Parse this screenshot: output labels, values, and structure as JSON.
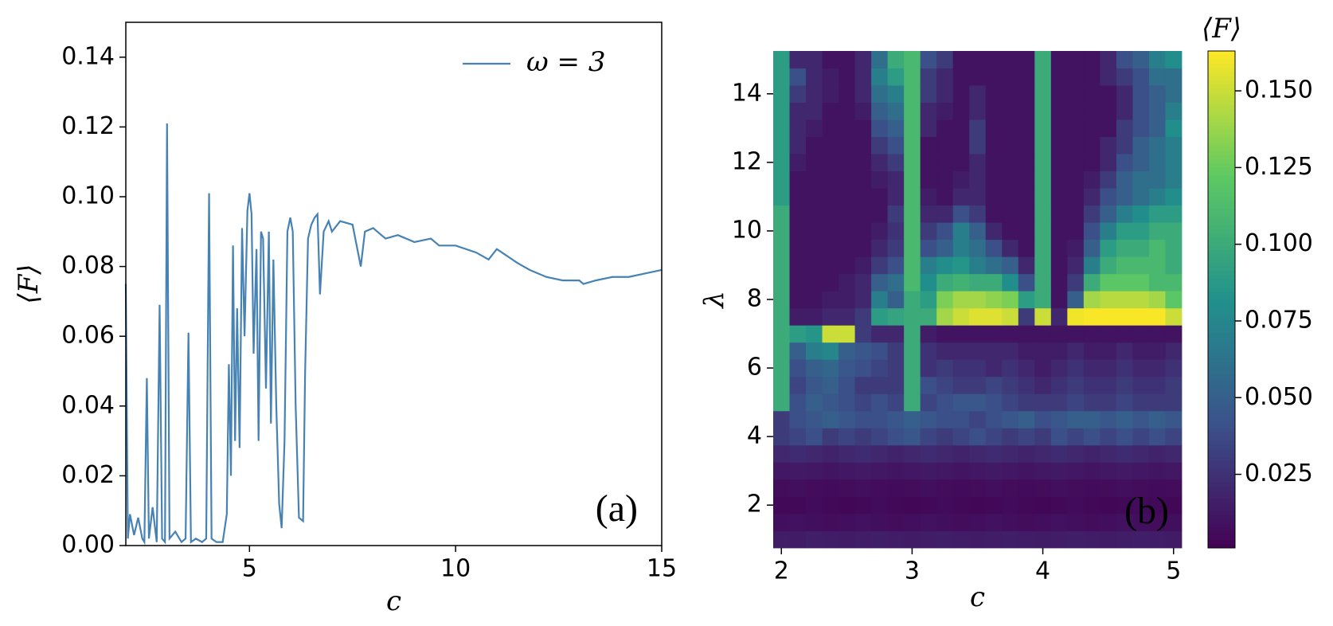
{
  "chart_data": [
    {
      "type": "line",
      "xlabel": "c",
      "ylabel": "⟨F⟩",
      "annotation": "(a)",
      "xlim": [
        2,
        15
      ],
      "ylim": [
        0,
        0.15
      ],
      "xticks": [
        5,
        10,
        15
      ],
      "yticks": [
        {
          "value": 0,
          "label": "0.00"
        },
        {
          "value": 0.02,
          "label": "0.02"
        },
        {
          "value": 0.04,
          "label": "0.04"
        },
        {
          "value": 0.06,
          "label": "0.06"
        },
        {
          "value": 0.08,
          "label": "0.08"
        },
        {
          "value": 0.1,
          "label": "0.10"
        },
        {
          "value": 0.12,
          "label": "0.12"
        },
        {
          "value": 0.14,
          "label": "0.14"
        }
      ],
      "legend": "upper right",
      "x": [
        2.0,
        2.05,
        2.1,
        2.2,
        2.3,
        2.4,
        2.45,
        2.51,
        2.56,
        2.65,
        2.75,
        2.82,
        2.88,
        2.95,
        3.0,
        3.06,
        3.2,
        3.35,
        3.45,
        3.52,
        3.58,
        3.7,
        3.85,
        3.95,
        4.02,
        4.08,
        4.2,
        4.35,
        4.45,
        4.5,
        4.55,
        4.6,
        4.65,
        4.7,
        4.76,
        4.82,
        4.88,
        4.95,
        5.0,
        5.05,
        5.1,
        5.17,
        5.22,
        5.28,
        5.33,
        5.4,
        5.47,
        5.52,
        5.58,
        5.65,
        5.72,
        5.78,
        5.85,
        5.92,
        5.99,
        6.05,
        6.12,
        6.2,
        6.3,
        6.35,
        6.42,
        6.5,
        6.58,
        6.65,
        6.71,
        6.8,
        6.92,
        7.0,
        7.2,
        7.5,
        7.7,
        7.8,
        8.0,
        8.3,
        8.6,
        9.0,
        9.4,
        9.6,
        10.0,
        10.5,
        10.8,
        11.0,
        11.5,
        11.8,
        12.2,
        12.6,
        13.0,
        13.1,
        13.4,
        13.8,
        14.2,
        14.6,
        15.0
      ],
      "series": [
        {
          "name": "ω = 3",
          "color": "#4682b4",
          "values": [
            0.075,
            0.002,
            0.009,
            0.003,
            0.008,
            0.002,
            0.001,
            0.048,
            0.002,
            0.011,
            0.001,
            0.069,
            0.002,
            0.001,
            0.121,
            0.002,
            0.004,
            0.001,
            0.002,
            0.061,
            0.001,
            0.002,
            0.001,
            0.002,
            0.101,
            0.002,
            0.001,
            0.001,
            0.009,
            0.052,
            0.02,
            0.086,
            0.03,
            0.068,
            0.028,
            0.091,
            0.06,
            0.096,
            0.101,
            0.095,
            0.055,
            0.085,
            0.03,
            0.09,
            0.088,
            0.045,
            0.09,
            0.035,
            0.082,
            0.04,
            0.012,
            0.005,
            0.03,
            0.09,
            0.094,
            0.09,
            0.04,
            0.008,
            0.007,
            0.05,
            0.088,
            0.092,
            0.094,
            0.095,
            0.072,
            0.09,
            0.093,
            0.09,
            0.093,
            0.092,
            0.08,
            0.09,
            0.091,
            0.088,
            0.089,
            0.087,
            0.088,
            0.086,
            0.086,
            0.084,
            0.082,
            0.085,
            0.081,
            0.079,
            0.077,
            0.076,
            0.076,
            0.075,
            0.076,
            0.077,
            0.077,
            0.078,
            0.079
          ]
        }
      ]
    },
    {
      "type": "heatmap",
      "xlabel": "c",
      "ylabel": "λ",
      "annotation": "(b)",
      "colormap": "viridis",
      "xlim": [
        1.9375,
        5.0625
      ],
      "ylim": [
        0.75,
        15.25
      ],
      "xticks": [
        2,
        3,
        4,
        5
      ],
      "yticks": [
        2,
        4,
        6,
        8,
        10,
        12,
        14
      ],
      "colorbar": {
        "label": "⟨F⟩",
        "lim": [
          0.001,
          0.163
        ],
        "ticks": [
          0.025,
          {
            "value": 0.05,
            "label": "0.050"
          },
          0.075,
          {
            "value": 0.1,
            "label": "0.100"
          },
          0.125,
          {
            "value": 0.15,
            "label": "0.150"
          }
        ]
      },
      "x": [
        2.0,
        2.125,
        2.25,
        2.375,
        2.5,
        2.625,
        2.75,
        2.875,
        3.0,
        3.125,
        3.25,
        3.375,
        3.5,
        3.625,
        3.75,
        3.875,
        4.0,
        4.125,
        4.25,
        4.375,
        4.5,
        4.625,
        4.75,
        4.875,
        5.0
      ],
      "y": [
        1.0,
        1.5,
        2.0,
        2.5,
        3.0,
        3.5,
        4.0,
        4.5,
        5.0,
        5.5,
        6.0,
        6.5,
        7.0,
        7.5,
        8.0,
        8.5,
        9.0,
        9.5,
        10.0,
        10.5,
        11.0,
        11.5,
        12.0,
        12.5,
        13.0,
        13.5,
        14.0,
        14.5,
        15.0
      ],
      "z": [
        [
          0.015,
          0.014,
          0.016,
          0.015,
          0.014,
          0.015,
          0.016,
          0.015,
          0.014,
          0.015,
          0.016,
          0.015,
          0.014,
          0.015,
          0.016,
          0.015,
          0.014,
          0.015,
          0.016,
          0.015,
          0.014,
          0.015,
          0.016,
          0.015,
          0.014
        ],
        [
          0.008,
          0.009,
          0.008,
          0.007,
          0.008,
          0.009,
          0.008,
          0.007,
          0.008,
          0.009,
          0.008,
          0.007,
          0.008,
          0.009,
          0.008,
          0.007,
          0.008,
          0.009,
          0.008,
          0.007,
          0.008,
          0.009,
          0.008,
          0.007,
          0.008
        ],
        [
          0.005,
          0.005,
          0.006,
          0.005,
          0.004,
          0.005,
          0.006,
          0.005,
          0.004,
          0.005,
          0.006,
          0.005,
          0.004,
          0.005,
          0.006,
          0.005,
          0.004,
          0.005,
          0.006,
          0.005,
          0.004,
          0.005,
          0.006,
          0.005,
          0.004
        ],
        [
          0.007,
          0.008,
          0.007,
          0.006,
          0.007,
          0.008,
          0.007,
          0.006,
          0.007,
          0.008,
          0.007,
          0.006,
          0.007,
          0.008,
          0.007,
          0.006,
          0.007,
          0.008,
          0.007,
          0.006,
          0.007,
          0.008,
          0.007,
          0.006,
          0.007
        ],
        [
          0.012,
          0.013,
          0.012,
          0.011,
          0.012,
          0.013,
          0.012,
          0.011,
          0.012,
          0.013,
          0.012,
          0.011,
          0.012,
          0.013,
          0.012,
          0.011,
          0.012,
          0.013,
          0.012,
          0.011,
          0.012,
          0.013,
          0.012,
          0.011,
          0.012
        ],
        [
          0.02,
          0.022,
          0.02,
          0.018,
          0.02,
          0.022,
          0.02,
          0.018,
          0.02,
          0.022,
          0.02,
          0.018,
          0.02,
          0.022,
          0.02,
          0.018,
          0.02,
          0.022,
          0.02,
          0.018,
          0.02,
          0.022,
          0.02,
          0.018,
          0.02
        ],
        [
          0.03,
          0.035,
          0.04,
          0.03,
          0.035,
          0.03,
          0.035,
          0.04,
          0.045,
          0.035,
          0.03,
          0.035,
          0.04,
          0.035,
          0.03,
          0.035,
          0.03,
          0.04,
          0.035,
          0.04,
          0.035,
          0.04,
          0.035,
          0.04,
          0.035
        ],
        [
          0.03,
          0.04,
          0.045,
          0.05,
          0.045,
          0.04,
          0.04,
          0.045,
          0.05,
          0.045,
          0.04,
          0.04,
          0.035,
          0.04,
          0.045,
          0.05,
          0.04,
          0.045,
          0.05,
          0.05,
          0.045,
          0.05,
          0.045,
          0.05,
          0.045
        ],
        [
          0.1,
          0.04,
          0.05,
          0.045,
          0.04,
          0.035,
          0.04,
          0.035,
          0.1,
          0.035,
          0.04,
          0.045,
          0.045,
          0.04,
          0.035,
          0.03,
          0.03,
          0.03,
          0.035,
          0.03,
          0.03,
          0.035,
          0.03,
          0.03,
          0.03
        ],
        [
          0.1,
          0.035,
          0.045,
          0.05,
          0.04,
          0.03,
          0.03,
          0.03,
          0.1,
          0.04,
          0.035,
          0.03,
          0.03,
          0.035,
          0.03,
          0.025,
          0.02,
          0.025,
          0.03,
          0.025,
          0.025,
          0.03,
          0.025,
          0.025,
          0.03
        ],
        [
          0.1,
          0.04,
          0.05,
          0.055,
          0.045,
          0.04,
          0.035,
          0.03,
          0.1,
          0.025,
          0.03,
          0.025,
          0.025,
          0.02,
          0.025,
          0.02,
          0.015,
          0.02,
          0.025,
          0.02,
          0.02,
          0.025,
          0.02,
          0.02,
          0.025
        ],
        [
          0.1,
          0.05,
          0.07,
          0.075,
          0.05,
          0.045,
          0.04,
          0.03,
          0.1,
          0.025,
          0.02,
          0.02,
          0.02,
          0.02,
          0.02,
          0.015,
          0.015,
          0.015,
          0.02,
          0.015,
          0.015,
          0.02,
          0.015,
          0.015,
          0.02
        ],
        [
          0.1,
          0.09,
          0.085,
          0.15,
          0.15,
          0.03,
          0.02,
          0.02,
          0.1,
          0.015,
          0.01,
          0.01,
          0.01,
          0.01,
          0.01,
          0.01,
          0.01,
          0.01,
          0.01,
          0.01,
          0.01,
          0.01,
          0.01,
          0.01,
          0.01
        ],
        [
          0.1,
          0.015,
          0.015,
          0.02,
          0.02,
          0.03,
          0.09,
          0.095,
          0.1,
          0.1,
          0.14,
          0.15,
          0.155,
          0.155,
          0.15,
          0.03,
          0.15,
          0.02,
          0.16,
          0.162,
          0.162,
          0.162,
          0.162,
          0.162,
          0.15
        ],
        [
          0.1,
          0.01,
          0.01,
          0.015,
          0.015,
          0.02,
          0.07,
          0.05,
          0.1,
          0.09,
          0.13,
          0.14,
          0.14,
          0.135,
          0.13,
          0.09,
          0.1,
          0.01,
          0.05,
          0.14,
          0.145,
          0.145,
          0.145,
          0.14,
          0.12
        ],
        [
          0.1,
          0.01,
          0.01,
          0.01,
          0.015,
          0.02,
          0.05,
          0.06,
          0.11,
          0.08,
          0.1,
          0.105,
          0.1,
          0.1,
          0.08,
          0.04,
          0.1,
          0.01,
          0.03,
          0.1,
          0.12,
          0.12,
          0.12,
          0.11,
          0.11
        ],
        [
          0.1,
          0.01,
          0.01,
          0.01,
          0.01,
          0.015,
          0.03,
          0.04,
          0.11,
          0.07,
          0.08,
          0.085,
          0.07,
          0.06,
          0.05,
          0.02,
          0.1,
          0.01,
          0.02,
          0.07,
          0.1,
          0.11,
          0.11,
          0.11,
          0.1
        ],
        [
          0.1,
          0.01,
          0.01,
          0.01,
          0.01,
          0.01,
          0.02,
          0.03,
          0.11,
          0.04,
          0.05,
          0.07,
          0.06,
          0.04,
          0.02,
          0.01,
          0.1,
          0.01,
          0.015,
          0.05,
          0.09,
          0.1,
          0.1,
          0.11,
          0.1
        ],
        [
          0.1,
          0.01,
          0.01,
          0.01,
          0.01,
          0.01,
          0.015,
          0.025,
          0.11,
          0.03,
          0.04,
          0.07,
          0.05,
          0.02,
          0.01,
          0.01,
          0.1,
          0.01,
          0.01,
          0.04,
          0.07,
          0.09,
          0.09,
          0.1,
          0.1
        ],
        [
          0.1,
          0.01,
          0.01,
          0.01,
          0.01,
          0.01,
          0.01,
          0.03,
          0.11,
          0.02,
          0.02,
          0.04,
          0.03,
          0.01,
          0.01,
          0.01,
          0.1,
          0.01,
          0.01,
          0.03,
          0.05,
          0.07,
          0.08,
          0.09,
          0.09
        ],
        [
          0.09,
          0.01,
          0.01,
          0.01,
          0.01,
          0.01,
          0.01,
          0.02,
          0.11,
          0.015,
          0.01,
          0.02,
          0.02,
          0.01,
          0.01,
          0.01,
          0.1,
          0.01,
          0.01,
          0.02,
          0.04,
          0.05,
          0.06,
          0.07,
          0.08
        ],
        [
          0.09,
          0.01,
          0.01,
          0.01,
          0.01,
          0.01,
          0.015,
          0.02,
          0.11,
          0.01,
          0.01,
          0.015,
          0.02,
          0.01,
          0.01,
          0.01,
          0.1,
          0.01,
          0.01,
          0.015,
          0.03,
          0.05,
          0.06,
          0.06,
          0.07
        ],
        [
          0.09,
          0.015,
          0.01,
          0.01,
          0.01,
          0.01,
          0.02,
          0.03,
          0.11,
          0.01,
          0.01,
          0.01,
          0.02,
          0.01,
          0.01,
          0.01,
          0.1,
          0.01,
          0.01,
          0.01,
          0.02,
          0.04,
          0.05,
          0.06,
          0.07
        ],
        [
          0.09,
          0.02,
          0.01,
          0.01,
          0.01,
          0.01,
          0.03,
          0.04,
          0.11,
          0.01,
          0.01,
          0.01,
          0.03,
          0.01,
          0.01,
          0.01,
          0.1,
          0.01,
          0.01,
          0.01,
          0.02,
          0.03,
          0.05,
          0.06,
          0.07
        ],
        [
          0.09,
          0.02,
          0.015,
          0.01,
          0.01,
          0.01,
          0.04,
          0.05,
          0.11,
          0.02,
          0.01,
          0.01,
          0.03,
          0.01,
          0.01,
          0.01,
          0.1,
          0.01,
          0.01,
          0.01,
          0.01,
          0.03,
          0.04,
          0.05,
          0.08
        ],
        [
          0.09,
          0.02,
          0.02,
          0.01,
          0.01,
          0.015,
          0.05,
          0.06,
          0.11,
          0.02,
          0.015,
          0.01,
          0.02,
          0.01,
          0.01,
          0.01,
          0.1,
          0.01,
          0.01,
          0.01,
          0.01,
          0.02,
          0.04,
          0.05,
          0.07
        ],
        [
          0.09,
          0.03,
          0.02,
          0.015,
          0.01,
          0.02,
          0.06,
          0.07,
          0.11,
          0.03,
          0.02,
          0.01,
          0.02,
          0.01,
          0.01,
          0.01,
          0.1,
          0.01,
          0.01,
          0.01,
          0.01,
          0.02,
          0.04,
          0.05,
          0.06
        ],
        [
          0.09,
          0.04,
          0.02,
          0.015,
          0.01,
          0.02,
          0.07,
          0.09,
          0.11,
          0.03,
          0.02,
          0.01,
          0.01,
          0.01,
          0.01,
          0.01,
          0.1,
          0.01,
          0.01,
          0.01,
          0.02,
          0.03,
          0.04,
          0.06,
          0.06
        ],
        [
          0.09,
          0.02,
          0.02,
          0.01,
          0.01,
          0.02,
          0.06,
          0.1,
          0.11,
          0.04,
          0.03,
          0.01,
          0.01,
          0.01,
          0.01,
          0.01,
          0.1,
          0.01,
          0.01,
          0.01,
          0.02,
          0.04,
          0.05,
          0.07,
          0.08
        ]
      ]
    }
  ]
}
